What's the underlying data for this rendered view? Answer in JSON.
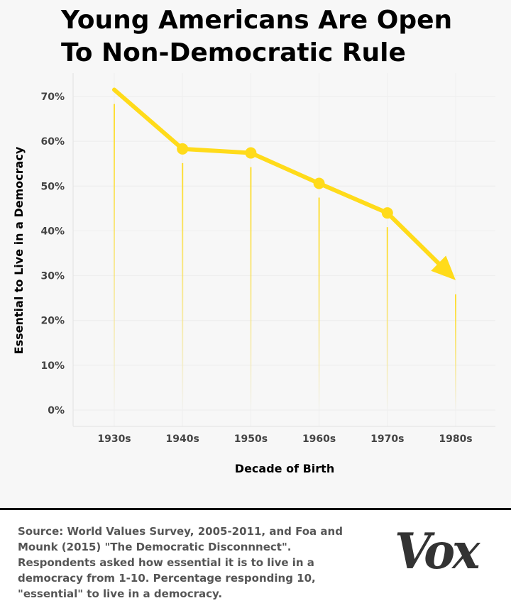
{
  "header": {
    "title_line1": "Young Americans Are Open",
    "title_line2": "To Non-Democratic Rule"
  },
  "chart_data": {
    "type": "line",
    "title": "Young Americans Are Open To Non-Democratic Rule",
    "xlabel": "Decade of Birth",
    "ylabel": "Essential to Live in a Democracy",
    "categories": [
      "1930s",
      "1940s",
      "1950s",
      "1960s",
      "1970s",
      "1980s"
    ],
    "values": [
      71.5,
      58.3,
      57.4,
      50.6,
      44.0,
      29.0
    ],
    "y_ticks": [
      0,
      10,
      20,
      30,
      40,
      50,
      60,
      70
    ],
    "y_tick_labels": [
      "0%",
      "10%",
      "20%",
      "30%",
      "40%",
      "50%",
      "60%",
      "70%"
    ],
    "ylim": [
      0,
      70
    ],
    "series_color": "#ffdb1a",
    "markers": "filled circles on 1940s-1970s; arrowhead at 1980s",
    "grid": true
  },
  "footer": {
    "source_text": "Source: World Values Survey, 2005-2011, and Foa and Mounk (2015) \"The Democratic Disconnnect\". Respondents asked how essential it is to live in a democracy from 1-10. Percentage responding 10, \"essential\" to live in a democracy.",
    "logo_text": "Vox"
  }
}
